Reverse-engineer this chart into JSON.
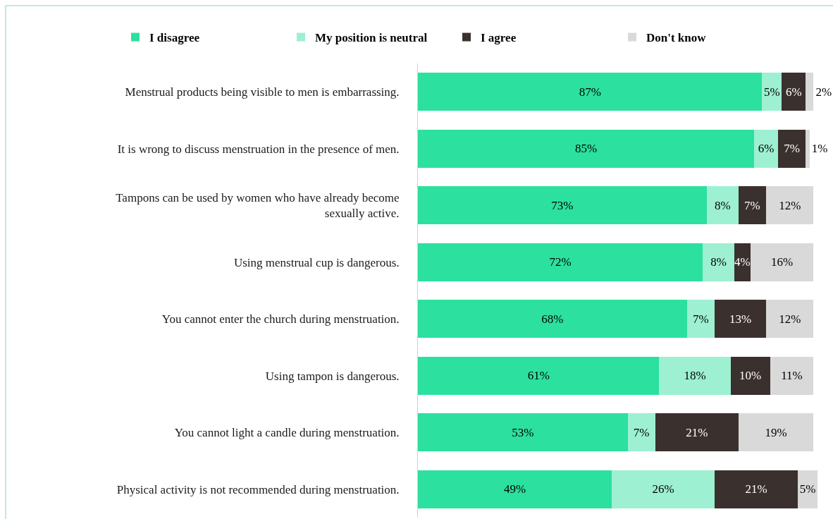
{
  "chart_data": {
    "type": "bar",
    "orientation": "horizontal",
    "stacked": true,
    "legend": "top",
    "categories": [
      "Menstrual products being visible to men is embarrassing.",
      "It is wrong to discuss menstruation in the presence of men.",
      "Tampons can be used by women who have already become sexually active.",
      "Using menstrual cup is dangerous.",
      "You cannot enter the church during menstruation.",
      "Using tampon is dangerous.",
      "You cannot light a candle during menstruation.",
      "Physical activity is not recommended during menstruation."
    ],
    "series": [
      {
        "name": "I disagree",
        "color": "#2ce0a0",
        "values": [
          87,
          85,
          73,
          72,
          68,
          61,
          53,
          49
        ],
        "value_labels": [
          "87%",
          "85%",
          "73%",
          "72%",
          "68%",
          "61%",
          "53%",
          "49%"
        ]
      },
      {
        "name": "My position is neutral",
        "color": "#9df0d2",
        "values": [
          5,
          6,
          8,
          8,
          7,
          18,
          7,
          26
        ],
        "value_labels": [
          "5%",
          "6%",
          "8%",
          "8%",
          "7%",
          "18%",
          "7%",
          "26%"
        ]
      },
      {
        "name": "I agree",
        "color": "#3a302e",
        "values": [
          6,
          7,
          7,
          4,
          13,
          10,
          21,
          21
        ],
        "value_labels": [
          "6%",
          "7%",
          "7%",
          "4%",
          "13%",
          "10%",
          "21%",
          "21%"
        ]
      },
      {
        "name": "Don't know",
        "color": "#d9d9d9",
        "values": [
          2,
          1,
          12,
          16,
          12,
          11,
          19,
          5
        ],
        "value_labels": [
          "2%",
          "1%",
          "12%",
          "16%",
          "12%",
          "11%",
          "19%",
          "5%"
        ]
      }
    ]
  }
}
